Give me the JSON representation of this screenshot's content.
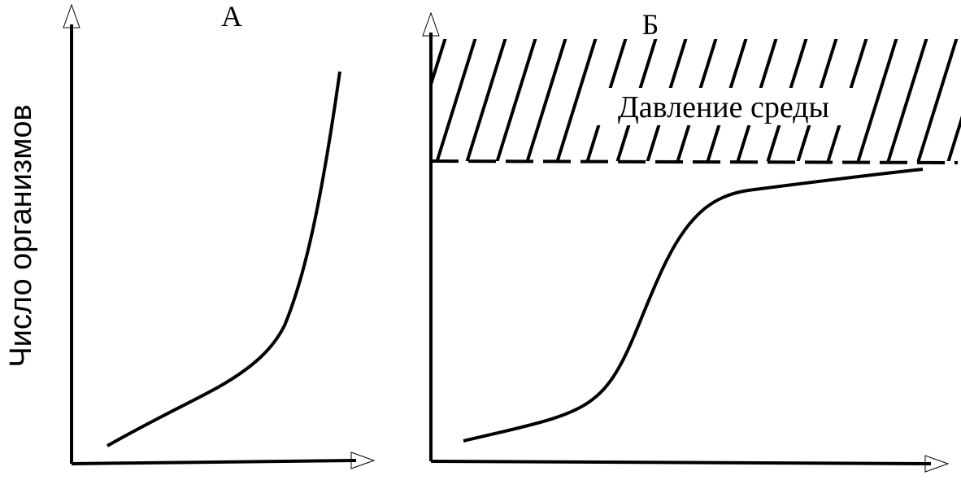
{
  "y_axis_label": "Число организмов",
  "panels": [
    {
      "label": "А"
    },
    {
      "label": "Б",
      "zone_label": "Давление среды"
    }
  ]
}
